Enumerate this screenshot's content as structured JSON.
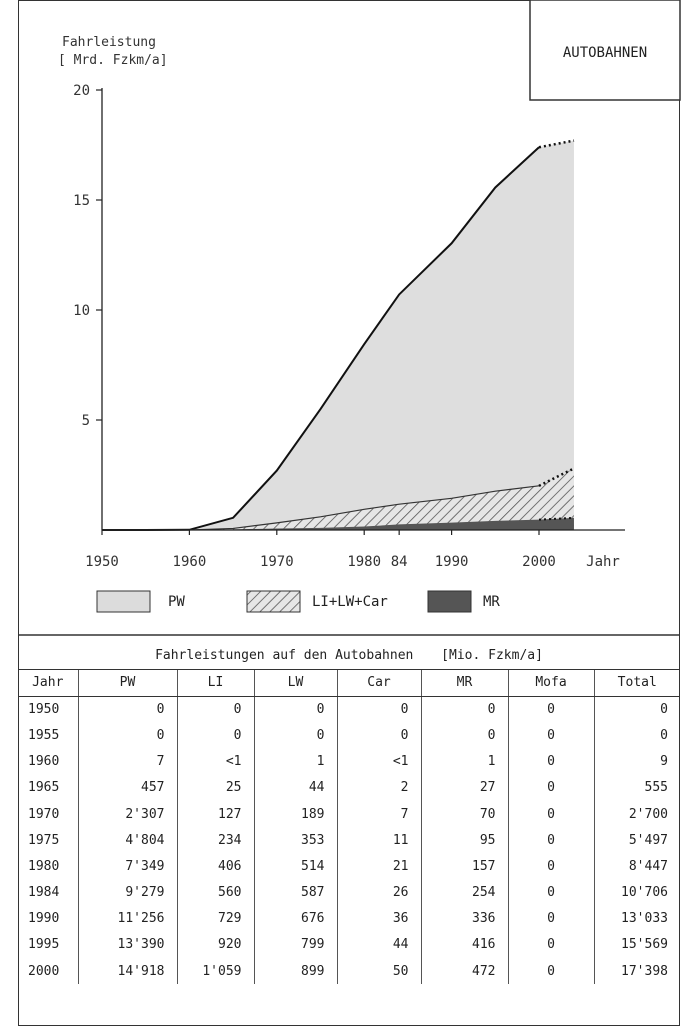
{
  "box_title": "AUTOBAHNEN",
  "chart_data": {
    "type": "area",
    "stacked": true,
    "ylabel": [
      "Fahrleistung",
      "[ Mrd. Fzkm/a]"
    ],
    "xlabel": "Jahr",
    "x_ticks": [
      "1950",
      "1960",
      "1970",
      "1980",
      "84",
      "1990",
      "2000"
    ],
    "y_ticks": [
      "5",
      "10",
      "15",
      "20"
    ],
    "ylim": [
      0,
      20
    ],
    "xlim": [
      1950,
      2004
    ],
    "grid": false,
    "legend_position": "bottom",
    "years": [
      1950,
      1955,
      1960,
      1965,
      1970,
      1975,
      1980,
      1984,
      1990,
      1995,
      2000
    ],
    "forecast_end": {
      "year": 2004,
      "total": 17.7,
      "li_lw_car": 2.8,
      "mr": 0.55
    },
    "series": [
      {
        "name": "PW",
        "pattern": "solid-light",
        "color": "#dcdcdc",
        "values": [
          0,
          0,
          0.007,
          0.457,
          2.307,
          4.804,
          7.349,
          9.279,
          11.256,
          13.39,
          14.918
        ]
      },
      {
        "name": "LI+LW+Car",
        "pattern": "hatched",
        "color": "#7a7a7a",
        "values": [
          0,
          0,
          0.002,
          0.071,
          0.323,
          0.598,
          0.941,
          1.173,
          1.441,
          1.763,
          2.008
        ]
      },
      {
        "name": "MR",
        "pattern": "solid-dark",
        "color": "#555555",
        "values": [
          0,
          0,
          0.001,
          0.027,
          0.07,
          0.095,
          0.157,
          0.254,
          0.336,
          0.416,
          0.472
        ]
      }
    ],
    "totals": [
      0,
      0,
      0.009,
      0.555,
      2.7,
      5.497,
      8.447,
      10.706,
      13.033,
      15.569,
      17.398
    ]
  },
  "table": {
    "title": "Fahrleistungen auf den Autobahnen",
    "unit": "[Mio. Fzkm/a]",
    "headers": [
      "Jahr",
      "PW",
      "LI",
      "LW",
      "Car",
      "MR",
      "Mofa",
      "Total"
    ],
    "rows": [
      [
        "1950",
        "0",
        "0",
        "0",
        "0",
        "0",
        "0",
        "0"
      ],
      [
        "1955",
        "0",
        "0",
        "0",
        "0",
        "0",
        "0",
        "0"
      ],
      [
        "1960",
        "7",
        "<1",
        "1",
        "<1",
        "1",
        "0",
        "9"
      ],
      [
        "1965",
        "457",
        "25",
        "44",
        "2",
        "27",
        "0",
        "555"
      ],
      [
        "1970",
        "2'307",
        "127",
        "189",
        "7",
        "70",
        "0",
        "2'700"
      ],
      [
        "1975",
        "4'804",
        "234",
        "353",
        "11",
        "95",
        "0",
        "5'497"
      ],
      [
        "1980",
        "7'349",
        "406",
        "514",
        "21",
        "157",
        "0",
        "8'447"
      ],
      [
        "1984",
        "9'279",
        "560",
        "587",
        "26",
        "254",
        "0",
        "10'706"
      ],
      [
        "1990",
        "11'256",
        "729",
        "676",
        "36",
        "336",
        "0",
        "13'033"
      ],
      [
        "1995",
        "13'390",
        "920",
        "799",
        "44",
        "416",
        "0",
        "15'569"
      ],
      [
        "2000",
        "14'918",
        "1'059",
        "899",
        "50",
        "472",
        "0",
        "17'398"
      ]
    ]
  }
}
